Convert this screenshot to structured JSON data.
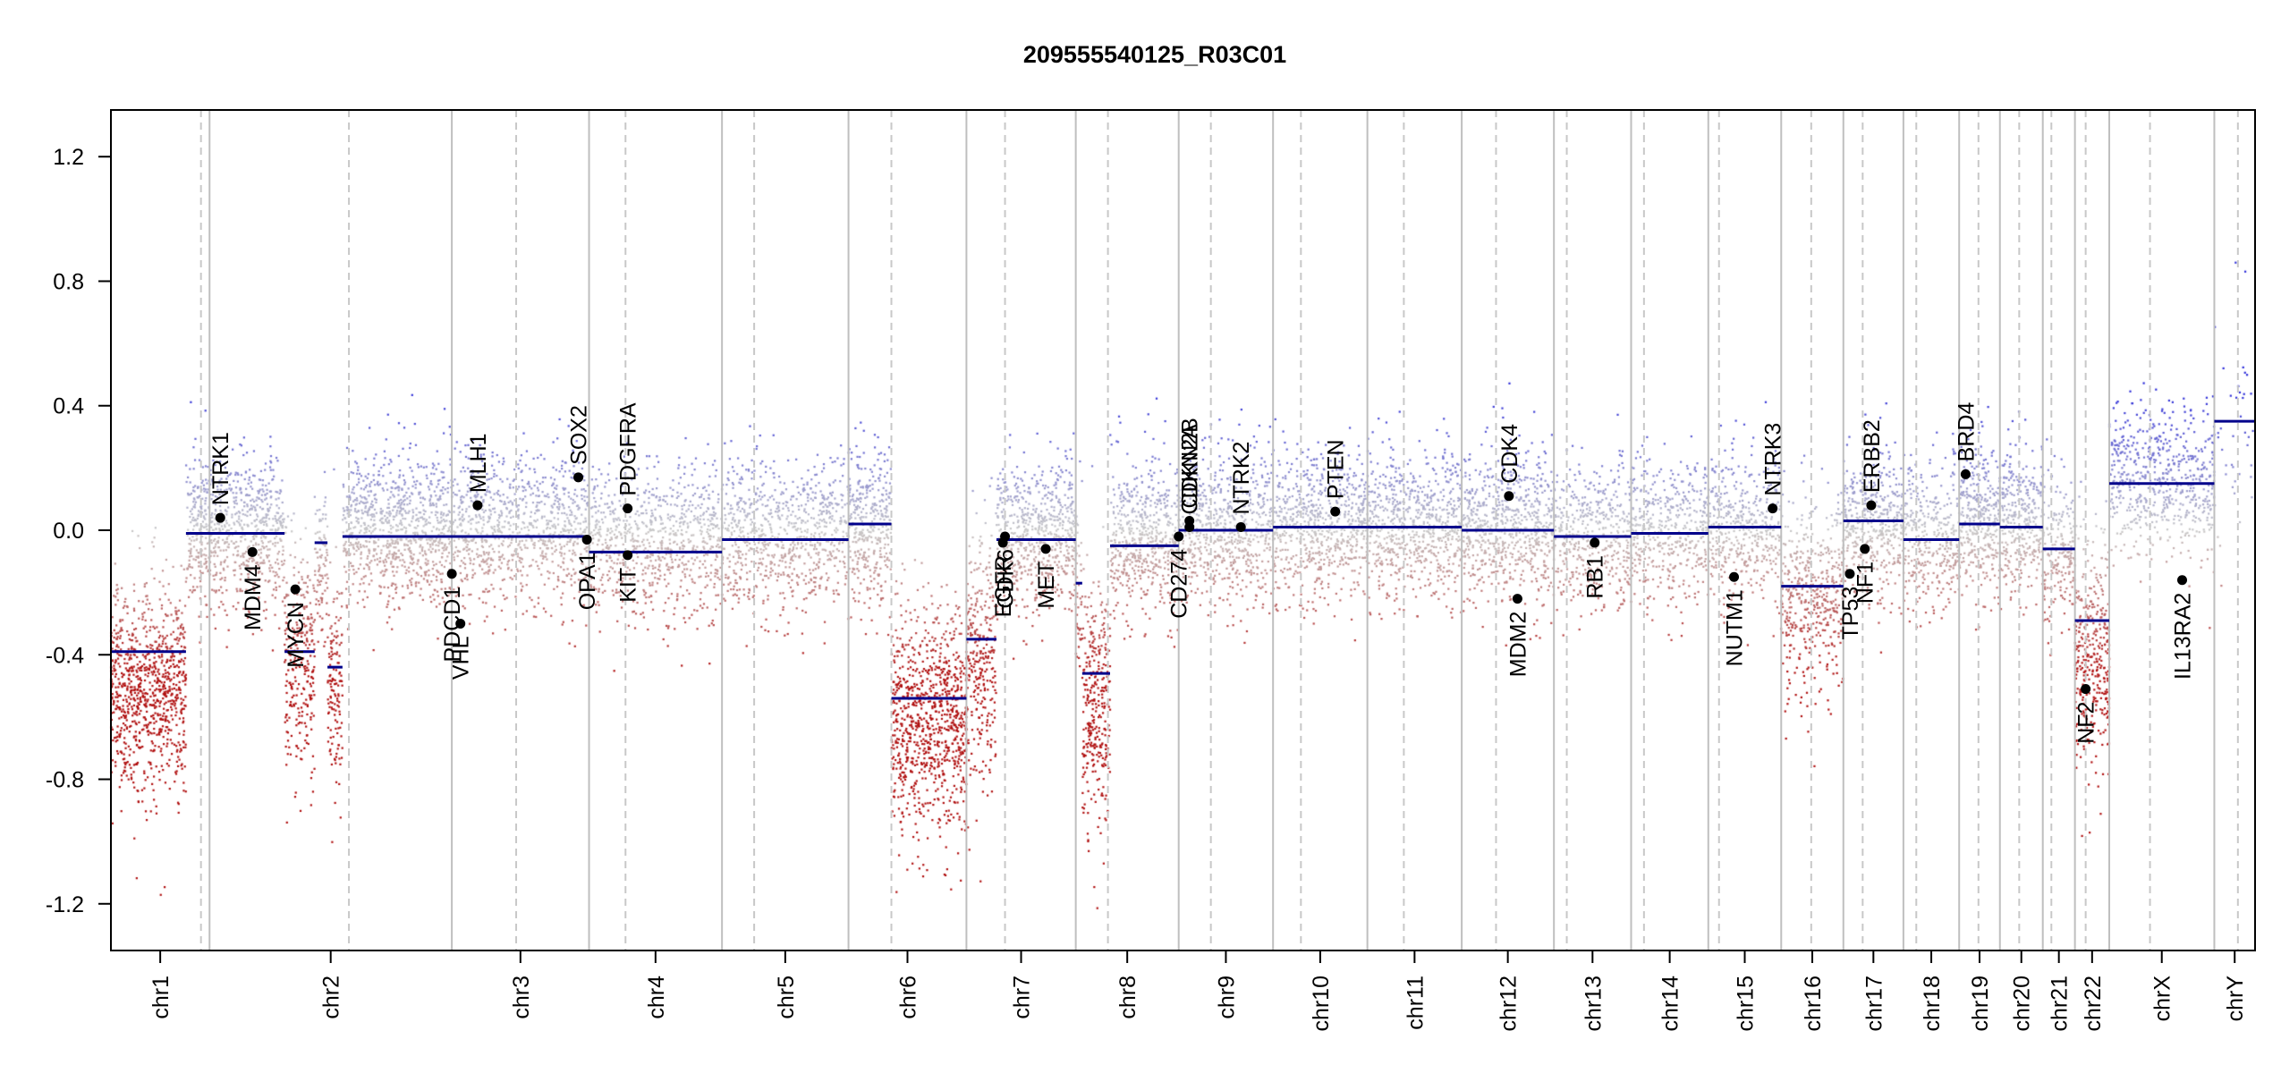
{
  "chart_data": {
    "type": "scatter",
    "title": "209555540125_R03C01",
    "xlabel": "",
    "ylabel": "",
    "ylim": [
      -1.35,
      1.35
    ],
    "y_ticks": [
      -1.2,
      -0.8,
      -0.4,
      0.0,
      0.4,
      0.8,
      1.2
    ],
    "y_tick_labels": [
      "-1.2",
      "-0.8",
      "-0.4",
      "0.0",
      "0.4",
      "0.8",
      "1.2"
    ],
    "grid": false,
    "colors": {
      "gain": "#2b2bd9",
      "loss": "#b01010",
      "neutral": "#c8c8c8",
      "segment": "#00008b",
      "gene": "#000000",
      "boundary": "#bfbfbf",
      "centromere": "#c8c8c8"
    },
    "chromosomes": [
      {
        "name": "chr1",
        "start": 0.0,
        "end": 0.046,
        "cen": 0.042
      },
      {
        "name": "chr2",
        "start": 0.046,
        "end": 0.159,
        "cen": 0.111
      },
      {
        "name": "chr3",
        "start": 0.159,
        "end": 0.223,
        "cen": 0.189
      },
      {
        "name": "chr4",
        "start": 0.223,
        "end": 0.285,
        "cen": 0.24
      },
      {
        "name": "chr5",
        "start": 0.285,
        "end": 0.344,
        "cen": 0.3
      },
      {
        "name": "chr6",
        "start": 0.344,
        "end": 0.399,
        "cen": 0.364
      },
      {
        "name": "chr7",
        "start": 0.399,
        "end": 0.45,
        "cen": 0.417
      },
      {
        "name": "chr8",
        "start": 0.45,
        "end": 0.498,
        "cen": 0.465
      },
      {
        "name": "chr9",
        "start": 0.498,
        "end": 0.542,
        "cen": 0.513
      },
      {
        "name": "chr10",
        "start": 0.542,
        "end": 0.586,
        "cen": 0.555
      },
      {
        "name": "chr11",
        "start": 0.586,
        "end": 0.63,
        "cen": 0.603
      },
      {
        "name": "chr12",
        "start": 0.63,
        "end": 0.673,
        "cen": 0.646
      },
      {
        "name": "chr13",
        "start": 0.673,
        "end": 0.709,
        "cen": 0.679
      },
      {
        "name": "chr14",
        "start": 0.709,
        "end": 0.745,
        "cen": 0.715
      },
      {
        "name": "chr15",
        "start": 0.745,
        "end": 0.779,
        "cen": 0.75
      },
      {
        "name": "chr16",
        "start": 0.779,
        "end": 0.808,
        "cen": 0.793
      },
      {
        "name": "chr17",
        "start": 0.808,
        "end": 0.836,
        "cen": 0.817
      },
      {
        "name": "chr18",
        "start": 0.836,
        "end": 0.862,
        "cen": 0.842
      },
      {
        "name": "chr19",
        "start": 0.862,
        "end": 0.881,
        "cen": 0.871
      },
      {
        "name": "chr20",
        "start": 0.881,
        "end": 0.901,
        "cen": 0.89
      },
      {
        "name": "chr21",
        "start": 0.901,
        "end": 0.916,
        "cen": 0.905
      },
      {
        "name": "chr22",
        "start": 0.916,
        "end": 0.932,
        "cen": 0.921
      },
      {
        "name": "chrX",
        "start": 0.932,
        "end": 0.981,
        "cen": 0.951
      },
      {
        "name": "chrY",
        "start": 0.981,
        "end": 1.0,
        "cen": 0.992
      }
    ],
    "segments": [
      {
        "x0": 0.0,
        "x1": 0.035,
        "y": -0.39
      },
      {
        "x0": 0.035,
        "x1": 0.081,
        "y": -0.01
      },
      {
        "x0": 0.081,
        "x1": 0.095,
        "y": -0.39
      },
      {
        "x0": 0.095,
        "x1": 0.101,
        "y": -0.04
      },
      {
        "x0": 0.101,
        "x1": 0.108,
        "y": -0.44
      },
      {
        "x0": 0.108,
        "x1": 0.223,
        "y": -0.02
      },
      {
        "x0": 0.223,
        "x1": 0.285,
        "y": -0.07
      },
      {
        "x0": 0.285,
        "x1": 0.344,
        "y": -0.03
      },
      {
        "x0": 0.344,
        "x1": 0.364,
        "y": 0.02
      },
      {
        "x0": 0.364,
        "x1": 0.399,
        "y": -0.54
      },
      {
        "x0": 0.399,
        "x1": 0.413,
        "y": -0.35
      },
      {
        "x0": 0.413,
        "x1": 0.45,
        "y": -0.03
      },
      {
        "x0": 0.45,
        "x1": 0.453,
        "y": -0.17
      },
      {
        "x0": 0.453,
        "x1": 0.466,
        "y": -0.46
      },
      {
        "x0": 0.466,
        "x1": 0.498,
        "y": -0.05
      },
      {
        "x0": 0.498,
        "x1": 0.542,
        "y": 0.0
      },
      {
        "x0": 0.542,
        "x1": 0.586,
        "y": 0.01
      },
      {
        "x0": 0.586,
        "x1": 0.63,
        "y": 0.01
      },
      {
        "x0": 0.63,
        "x1": 0.673,
        "y": 0.0
      },
      {
        "x0": 0.673,
        "x1": 0.709,
        "y": -0.02
      },
      {
        "x0": 0.709,
        "x1": 0.745,
        "y": -0.01
      },
      {
        "x0": 0.745,
        "x1": 0.779,
        "y": 0.01
      },
      {
        "x0": 0.779,
        "x1": 0.808,
        "y": -0.18
      },
      {
        "x0": 0.808,
        "x1": 0.836,
        "y": 0.03
      },
      {
        "x0": 0.836,
        "x1": 0.862,
        "y": -0.03
      },
      {
        "x0": 0.862,
        "x1": 0.881,
        "y": 0.02
      },
      {
        "x0": 0.881,
        "x1": 0.901,
        "y": 0.01
      },
      {
        "x0": 0.901,
        "x1": 0.916,
        "y": -0.06
      },
      {
        "x0": 0.916,
        "x1": 0.932,
        "y": -0.29
      },
      {
        "x0": 0.932,
        "x1": 0.981,
        "y": 0.15
      },
      {
        "x0": 0.981,
        "x1": 1.0,
        "y": 0.35
      }
    ],
    "genes": [
      {
        "name": "NTRK1",
        "x": 0.051,
        "y": 0.04,
        "label_pos": "above"
      },
      {
        "name": "MDM4",
        "x": 0.066,
        "y": -0.07,
        "label_pos": "below"
      },
      {
        "name": "MYCN",
        "x": 0.086,
        "y": -0.19,
        "label_pos": "below"
      },
      {
        "name": "PDCD1",
        "x": 0.159,
        "y": -0.14,
        "label_pos": "below"
      },
      {
        "name": "VHL",
        "x": 0.163,
        "y": -0.3,
        "label_pos": "below"
      },
      {
        "name": "MLH1",
        "x": 0.171,
        "y": 0.08,
        "label_pos": "above"
      },
      {
        "name": "SOX2",
        "x": 0.218,
        "y": 0.17,
        "label_pos": "above"
      },
      {
        "name": "OPA1",
        "x": 0.222,
        "y": -0.03,
        "label_pos": "below"
      },
      {
        "name": "PDGFRA",
        "x": 0.241,
        "y": 0.07,
        "label_pos": "above"
      },
      {
        "name": "KIT",
        "x": 0.241,
        "y": -0.08,
        "label_pos": "below"
      },
      {
        "name": "EGFR",
        "x": 0.416,
        "y": -0.04,
        "label_pos": "below"
      },
      {
        "name": "CDK6",
        "x": 0.417,
        "y": -0.02,
        "label_pos": "below"
      },
      {
        "name": "MET",
        "x": 0.436,
        "y": -0.06,
        "label_pos": "below"
      },
      {
        "name": "CD274",
        "x": 0.498,
        "y": -0.02,
        "label_pos": "below"
      },
      {
        "name": "CDKN2A",
        "x": 0.503,
        "y": 0.01,
        "label_pos": "above"
      },
      {
        "name": "CDKN2B",
        "x": 0.503,
        "y": 0.03,
        "label_pos": "above"
      },
      {
        "name": "NTRK2",
        "x": 0.527,
        "y": 0.01,
        "label_pos": "above"
      },
      {
        "name": "PTEN",
        "x": 0.571,
        "y": 0.06,
        "label_pos": "above"
      },
      {
        "name": "CDK4",
        "x": 0.652,
        "y": 0.11,
        "label_pos": "above"
      },
      {
        "name": "MDM2",
        "x": 0.656,
        "y": -0.22,
        "label_pos": "below"
      },
      {
        "name": "RB1",
        "x": 0.692,
        "y": -0.04,
        "label_pos": "below"
      },
      {
        "name": "NUTM1",
        "x": 0.757,
        "y": -0.15,
        "label_pos": "below"
      },
      {
        "name": "NTRK3",
        "x": 0.775,
        "y": 0.07,
        "label_pos": "above"
      },
      {
        "name": "TP53",
        "x": 0.811,
        "y": -0.14,
        "label_pos": "below"
      },
      {
        "name": "NF1",
        "x": 0.818,
        "y": -0.06,
        "label_pos": "below"
      },
      {
        "name": "ERBB2",
        "x": 0.821,
        "y": 0.08,
        "label_pos": "above"
      },
      {
        "name": "BRD4",
        "x": 0.865,
        "y": 0.18,
        "label_pos": "above"
      },
      {
        "name": "NF2",
        "x": 0.921,
        "y": -0.51,
        "label_pos": "below"
      },
      {
        "name": "IL13RA2",
        "x": 0.966,
        "y": -0.16,
        "label_pos": "below"
      }
    ],
    "point_clouds": [
      {
        "x0": 0.0,
        "x1": 0.035,
        "center": -0.5,
        "spread": 0.16,
        "n": 900
      },
      {
        "x0": 0.035,
        "x1": 0.081,
        "center": 0.0,
        "spread": 0.12,
        "n": 800
      },
      {
        "x0": 0.081,
        "x1": 0.095,
        "center": -0.42,
        "spread": 0.18,
        "n": 280
      },
      {
        "x0": 0.095,
        "x1": 0.101,
        "center": -0.1,
        "spread": 0.12,
        "n": 90
      },
      {
        "x0": 0.101,
        "x1": 0.108,
        "center": -0.48,
        "spread": 0.18,
        "n": 140
      },
      {
        "x0": 0.108,
        "x1": 0.159,
        "center": 0.0,
        "spread": 0.12,
        "n": 900
      },
      {
        "x0": 0.159,
        "x1": 0.223,
        "center": 0.0,
        "spread": 0.12,
        "n": 900
      },
      {
        "x0": 0.223,
        "x1": 0.285,
        "center": -0.04,
        "spread": 0.12,
        "n": 800
      },
      {
        "x0": 0.285,
        "x1": 0.344,
        "center": -0.02,
        "spread": 0.12,
        "n": 800
      },
      {
        "x0": 0.344,
        "x1": 0.364,
        "center": 0.02,
        "spread": 0.12,
        "n": 350
      },
      {
        "x0": 0.364,
        "x1": 0.399,
        "center": -0.6,
        "spread": 0.18,
        "n": 900
      },
      {
        "x0": 0.399,
        "x1": 0.413,
        "center": -0.42,
        "spread": 0.2,
        "n": 300
      },
      {
        "x0": 0.413,
        "x1": 0.45,
        "center": -0.02,
        "spread": 0.12,
        "n": 650
      },
      {
        "x0": 0.45,
        "x1": 0.453,
        "center": -0.2,
        "spread": 0.15,
        "n": 40
      },
      {
        "x0": 0.453,
        "x1": 0.466,
        "center": -0.55,
        "spread": 0.2,
        "n": 320
      },
      {
        "x0": 0.466,
        "x1": 0.498,
        "center": -0.03,
        "spread": 0.12,
        "n": 550
      },
      {
        "x0": 0.498,
        "x1": 0.542,
        "center": 0.0,
        "spread": 0.12,
        "n": 650
      },
      {
        "x0": 0.542,
        "x1": 0.586,
        "center": 0.02,
        "spread": 0.12,
        "n": 700
      },
      {
        "x0": 0.586,
        "x1": 0.63,
        "center": 0.02,
        "spread": 0.12,
        "n": 700
      },
      {
        "x0": 0.63,
        "x1": 0.673,
        "center": 0.01,
        "spread": 0.12,
        "n": 700
      },
      {
        "x0": 0.673,
        "x1": 0.709,
        "center": -0.02,
        "spread": 0.12,
        "n": 450
      },
      {
        "x0": 0.709,
        "x1": 0.745,
        "center": 0.0,
        "spread": 0.12,
        "n": 450
      },
      {
        "x0": 0.745,
        "x1": 0.779,
        "center": 0.0,
        "spread": 0.12,
        "n": 450
      },
      {
        "x0": 0.779,
        "x1": 0.808,
        "center": -0.2,
        "spread": 0.15,
        "n": 450
      },
      {
        "x0": 0.808,
        "x1": 0.836,
        "center": 0.02,
        "spread": 0.12,
        "n": 450
      },
      {
        "x0": 0.836,
        "x1": 0.862,
        "center": -0.03,
        "spread": 0.12,
        "n": 350
      },
      {
        "x0": 0.862,
        "x1": 0.881,
        "center": 0.03,
        "spread": 0.12,
        "n": 350
      },
      {
        "x0": 0.881,
        "x1": 0.901,
        "center": 0.02,
        "spread": 0.12,
        "n": 320
      },
      {
        "x0": 0.901,
        "x1": 0.916,
        "center": -0.08,
        "spread": 0.12,
        "n": 200
      },
      {
        "x0": 0.916,
        "x1": 0.932,
        "center": -0.4,
        "spread": 0.2,
        "n": 350
      },
      {
        "x0": 0.932,
        "x1": 0.981,
        "center": 0.16,
        "spread": 0.13,
        "n": 600
      },
      {
        "x0": 0.981,
        "x1": 1.0,
        "center": 0.3,
        "spread": 0.25,
        "n": 40
      }
    ]
  }
}
